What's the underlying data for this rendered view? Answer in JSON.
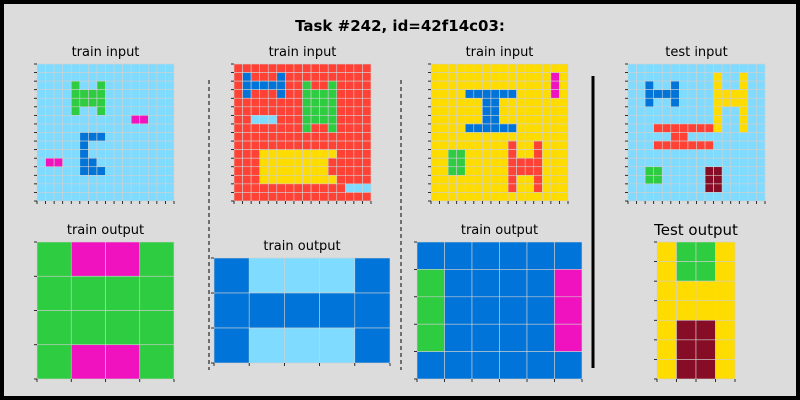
{
  "title": "Task #242, id=42f14c03:",
  "colors": {
    "0": "#000000",
    "1": "#0074D9",
    "2": "#FF4136",
    "3": "#2ECC40",
    "4": "#FFDC00",
    "5": "#AAAAAA",
    "6": "#F012BE",
    "7": "#FF851B",
    "8": "#7FDBFF",
    "9": "#870C25",
    "background": "#dcdcdc",
    "gridline": "#d0d0d0"
  },
  "panels": [
    {
      "label": "train input",
      "grid": [
        "8888888888888888",
        "8888888888888888",
        "8888888888888888",
        "8888888888888888",
        "8888888888888888",
        "8888888888888888",
        "8888888888888888",
        "8888888888888888",
        "8888888888888888",
        "8888888888888888",
        "8888888888888888",
        "8888888888888888",
        "8888888888888888",
        "8888888888888888",
        "8888888888888888",
        "8888888888888888"
      ],
      "overlays": [
        {
          "c": 3,
          "cells": [
            [
              2,
              4
            ],
            [
              3,
              4
            ],
            [
              4,
              4
            ],
            [
              5,
              4
            ],
            [
              2,
              7
            ],
            [
              3,
              7
            ],
            [
              4,
              7
            ],
            [
              5,
              7
            ],
            [
              3,
              5
            ],
            [
              3,
              6
            ],
            [
              4,
              5
            ],
            [
              4,
              6
            ]
          ]
        },
        {
          "c": 1,
          "cells": [
            [
              8,
              5
            ],
            [
              8,
              6
            ],
            [
              8,
              7
            ],
            [
              9,
              5
            ],
            [
              10,
              5
            ],
            [
              11,
              5
            ],
            [
              11,
              6
            ],
            [
              12,
              5
            ],
            [
              12,
              6
            ],
            [
              12,
              7
            ]
          ]
        },
        {
          "c": 6,
          "cells": [
            [
              6,
              11
            ],
            [
              6,
              12
            ],
            [
              11,
              1
            ],
            [
              11,
              2
            ]
          ]
        }
      ]
    },
    {
      "label": "train output",
      "grid": [
        "3663",
        "3333",
        "3333",
        "3663"
      ]
    },
    {
      "label": "train input",
      "grid": [
        "2222222222222222",
        "2222222222222222",
        "2222222222222222",
        "2222222222222222",
        "2222222222222222",
        "2222222222222222",
        "2222222222222222",
        "2222222222222222",
        "2222222222222222",
        "2222222222222222",
        "2222222222222222",
        "2222222222222222",
        "2222222222222222",
        "2222222222222222",
        "2222222222222222",
        "2222222222222222"
      ],
      "overlays": [
        {
          "c": 1,
          "cells": [
            [
              1,
              1
            ],
            [
              1,
              5
            ],
            [
              2,
              1
            ],
            [
              2,
              2
            ],
            [
              2,
              3
            ],
            [
              2,
              4
            ],
            [
              2,
              5
            ],
            [
              3,
              1
            ],
            [
              3,
              5
            ]
          ]
        },
        {
          "c": 3,
          "cells": [
            [
              2,
              8
            ],
            [
              2,
              11
            ],
            [
              3,
              8
            ],
            [
              3,
              9
            ],
            [
              3,
              10
            ],
            [
              3,
              11
            ],
            [
              4,
              8
            ],
            [
              4,
              9
            ],
            [
              4,
              10
            ],
            [
              4,
              11
            ],
            [
              5,
              8
            ],
            [
              5,
              9
            ],
            [
              5,
              10
            ],
            [
              5,
              11
            ],
            [
              6,
              8
            ],
            [
              6,
              9
            ],
            [
              6,
              10
            ],
            [
              6,
              11
            ],
            [
              7,
              8
            ],
            [
              7,
              11
            ]
          ]
        },
        {
          "c": 8,
          "cells": [
            [
              6,
              2
            ],
            [
              6,
              3
            ],
            [
              6,
              4
            ],
            [
              14,
              13
            ],
            [
              14,
              14
            ],
            [
              14,
              15
            ]
          ]
        },
        {
          "c": 4,
          "cells": [
            [
              10,
              3
            ],
            [
              10,
              4
            ],
            [
              10,
              5
            ],
            [
              10,
              6
            ],
            [
              10,
              7
            ],
            [
              10,
              8
            ],
            [
              10,
              9
            ],
            [
              10,
              10
            ],
            [
              10,
              11
            ],
            [
              11,
              3
            ],
            [
              11,
              4
            ],
            [
              11,
              5
            ],
            [
              11,
              6
            ],
            [
              11,
              7
            ],
            [
              11,
              8
            ],
            [
              11,
              9
            ],
            [
              11,
              10
            ],
            [
              12,
              3
            ],
            [
              12,
              4
            ],
            [
              12,
              5
            ],
            [
              12,
              6
            ],
            [
              12,
              7
            ],
            [
              12,
              8
            ],
            [
              12,
              9
            ],
            [
              12,
              10
            ],
            [
              13,
              3
            ],
            [
              13,
              4
            ],
            [
              13,
              5
            ],
            [
              13,
              6
            ],
            [
              13,
              7
            ],
            [
              13,
              8
            ],
            [
              13,
              9
            ],
            [
              13,
              10
            ],
            [
              13,
              11
            ]
          ]
        }
      ]
    },
    {
      "label": "train output",
      "grid": [
        "18881",
        "11111",
        "18881"
      ]
    },
    {
      "label": "train input",
      "grid": [
        "4444444444444444",
        "4444444444444444",
        "4444444444444444",
        "4444444444444444",
        "4444444444444444",
        "4444444444444444",
        "4444444444444444",
        "4444444444444444",
        "4444444444444444",
        "4444444444444444",
        "4444444444444444",
        "4444444444444444",
        "4444444444444444",
        "4444444444444444",
        "4444444444444444",
        "4444444444444444"
      ],
      "overlays": [
        {
          "c": 6,
          "cells": [
            [
              1,
              14
            ],
            [
              2,
              14
            ],
            [
              3,
              14
            ]
          ]
        },
        {
          "c": 1,
          "cells": [
            [
              3,
              4
            ],
            [
              3,
              5
            ],
            [
              3,
              6
            ],
            [
              3,
              7
            ],
            [
              3,
              8
            ],
            [
              3,
              9
            ],
            [
              4,
              6
            ],
            [
              4,
              7
            ],
            [
              5,
              6
            ],
            [
              5,
              7
            ],
            [
              6,
              6
            ],
            [
              6,
              7
            ],
            [
              7,
              4
            ],
            [
              7,
              5
            ],
            [
              7,
              6
            ],
            [
              7,
              7
            ],
            [
              7,
              8
            ],
            [
              7,
              9
            ]
          ]
        },
        {
          "c": 3,
          "cells": [
            [
              10,
              2
            ],
            [
              11,
              2
            ],
            [
              12,
              2
            ],
            [
              10,
              3
            ],
            [
              11,
              3
            ],
            [
              12,
              3
            ]
          ]
        },
        {
          "c": 2,
          "cells": [
            [
              9,
              9
            ],
            [
              10,
              9
            ],
            [
              11,
              9
            ],
            [
              12,
              9
            ],
            [
              13,
              9
            ],
            [
              14,
              9
            ],
            [
              9,
              12
            ],
            [
              10,
              12
            ],
            [
              11,
              12
            ],
            [
              12,
              12
            ],
            [
              13,
              12
            ],
            [
              14,
              12
            ],
            [
              12,
              10
            ],
            [
              12,
              11
            ],
            [
              11,
              10
            ],
            [
              11,
              11
            ]
          ]
        }
      ]
    },
    {
      "label": "train output",
      "grid": [
        "111111",
        "311116",
        "311116",
        "311116",
        "111111"
      ]
    },
    {
      "label": "test input",
      "grid": [
        "8888888888888888",
        "8888888888888888",
        "8888888888888888",
        "8888888888888888",
        "8888888888888888",
        "8888888888888888",
        "8888888888888888",
        "8888888888888888",
        "8888888888888888",
        "8888888888888888",
        "8888888888888888",
        "8888888888888888",
        "8888888888888888",
        "8888888888888888",
        "8888888888888888",
        "8888888888888888"
      ],
      "overlays": [
        {
          "c": 1,
          "cells": [
            [
              2,
              2
            ],
            [
              3,
              2
            ],
            [
              4,
              2
            ],
            [
              2,
              5
            ],
            [
              3,
              5
            ],
            [
              4,
              5
            ],
            [
              3,
              3
            ],
            [
              3,
              4
            ]
          ]
        },
        {
          "c": 4,
          "cells": [
            [
              1,
              10
            ],
            [
              2,
              10
            ],
            [
              3,
              10
            ],
            [
              4,
              10
            ],
            [
              5,
              10
            ],
            [
              6,
              10
            ],
            [
              7,
              10
            ],
            [
              1,
              13
            ],
            [
              2,
              13
            ],
            [
              3,
              13
            ],
            [
              4,
              13
            ],
            [
              5,
              13
            ],
            [
              6,
              13
            ],
            [
              7,
              13
            ],
            [
              3,
              11
            ],
            [
              3,
              12
            ],
            [
              4,
              11
            ],
            [
              4,
              12
            ]
          ]
        },
        {
          "c": 2,
          "cells": [
            [
              7,
              3
            ],
            [
              7,
              4
            ],
            [
              7,
              5
            ],
            [
              7,
              6
            ],
            [
              7,
              7
            ],
            [
              7,
              8
            ],
            [
              7,
              9
            ],
            [
              8,
              5
            ],
            [
              8,
              6
            ],
            [
              9,
              3
            ],
            [
              9,
              4
            ],
            [
              9,
              5
            ],
            [
              9,
              6
            ],
            [
              9,
              7
            ],
            [
              9,
              8
            ],
            [
              9,
              9
            ]
          ]
        },
        {
          "c": 3,
          "cells": [
            [
              12,
              2
            ],
            [
              12,
              3
            ],
            [
              13,
              2
            ],
            [
              13,
              3
            ]
          ]
        },
        {
          "c": 9,
          "cells": [
            [
              12,
              9
            ],
            [
              12,
              10
            ],
            [
              13,
              9
            ],
            [
              13,
              10
            ],
            [
              14,
              9
            ],
            [
              14,
              10
            ]
          ]
        }
      ]
    },
    {
      "label": "Test output",
      "grid": [
        "4334",
        "4334",
        "4444",
        "4444",
        "4994",
        "4994",
        "4994"
      ]
    }
  ]
}
